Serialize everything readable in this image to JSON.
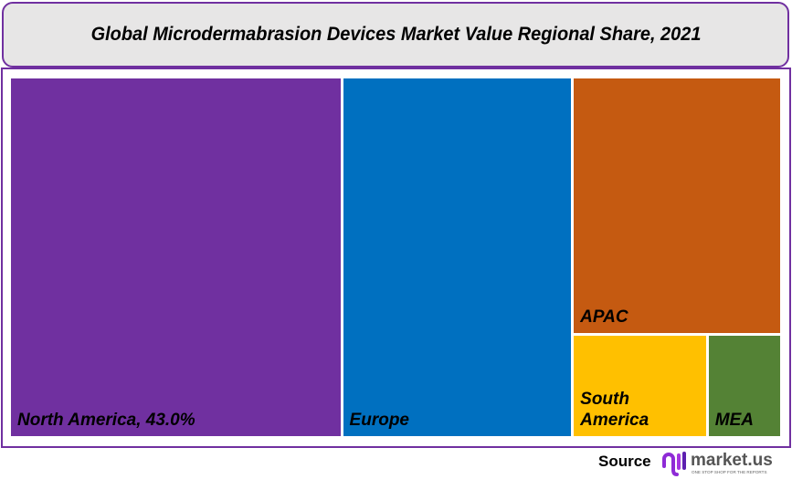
{
  "chart_data": {
    "type": "treemap",
    "title": "Global Microdermabrasion  Devices Market Value Regional Share, 2021",
    "items": [
      {
        "name": "North America",
        "label": "North America, 43.0%",
        "value": 43.0,
        "color": "#7030A0"
      },
      {
        "name": "Europe",
        "label": "Europe",
        "value": 30.0,
        "color": "#0070C0"
      },
      {
        "name": "APAC",
        "label": "APAC",
        "value": 19.3,
        "color": "#C55A11"
      },
      {
        "name": "South America",
        "label": "South America",
        "value": 5.0,
        "color": "#FFC000"
      },
      {
        "name": "MEA",
        "label": "MEA",
        "value": 2.7,
        "color": "#548235"
      }
    ]
  },
  "footer": {
    "source_label": "Source",
    "logo_text": "market.us",
    "logo_tagline": "ONE STOP SHOP FOR THE REPORTS"
  }
}
